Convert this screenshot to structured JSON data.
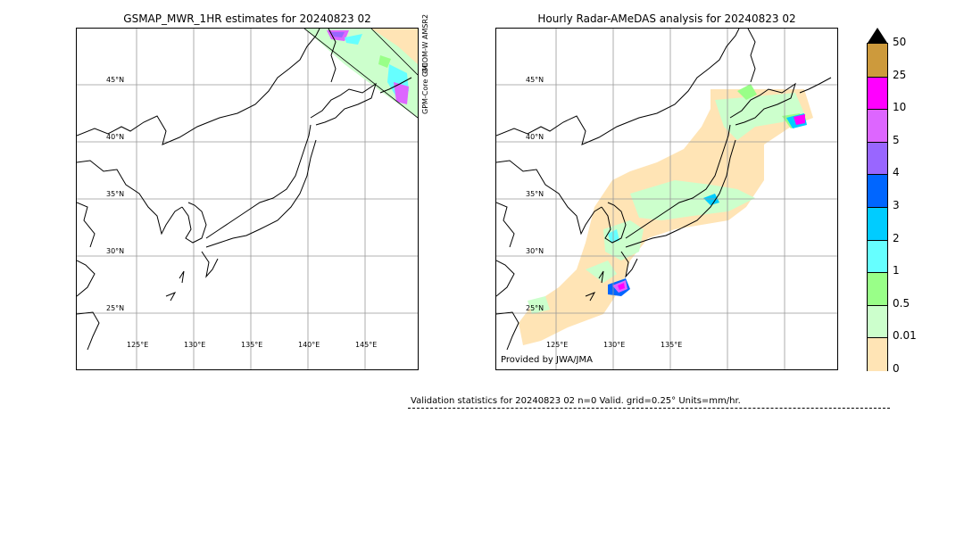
{
  "left_panel": {
    "title": "GSMAP_MWR_1HR estimates for 20240823 02",
    "lat_labels": [
      "45°N",
      "40°N",
      "35°N",
      "30°N",
      "25°N"
    ],
    "lon_labels": [
      "125°E",
      "130°E",
      "135°E",
      "140°E",
      "145°E"
    ],
    "swath_labels": [
      "GCOM-W AMSR2",
      "GPM-Core GMI"
    ]
  },
  "right_panel": {
    "title": "Hourly Radar-AMeDAS analysis for 20240823 02",
    "lat_labels": [
      "45°N",
      "40°N",
      "35°N",
      "30°N",
      "25°N"
    ],
    "lon_labels": [
      "125°E",
      "130°E",
      "135°E"
    ],
    "credit": "Provided by JWA/JMA"
  },
  "colorbar": {
    "ticks": [
      "50",
      "25",
      "10",
      "5",
      "4",
      "3",
      "2",
      "1",
      "0.5",
      "0.01",
      "0"
    ],
    "colors": [
      "#cd9a3c",
      "#ff00ff",
      "#dd66ff",
      "#9966ff",
      "#0066ff",
      "#00ccff",
      "#66ffff",
      "#99ff88",
      "#ccffcc",
      "#ffe4b5"
    ],
    "extend_color": "#000000"
  },
  "validation": {
    "text": "Validation statistics for 20240823 02  n=0 Valid. grid=0.25° Units=mm/hr."
  }
}
